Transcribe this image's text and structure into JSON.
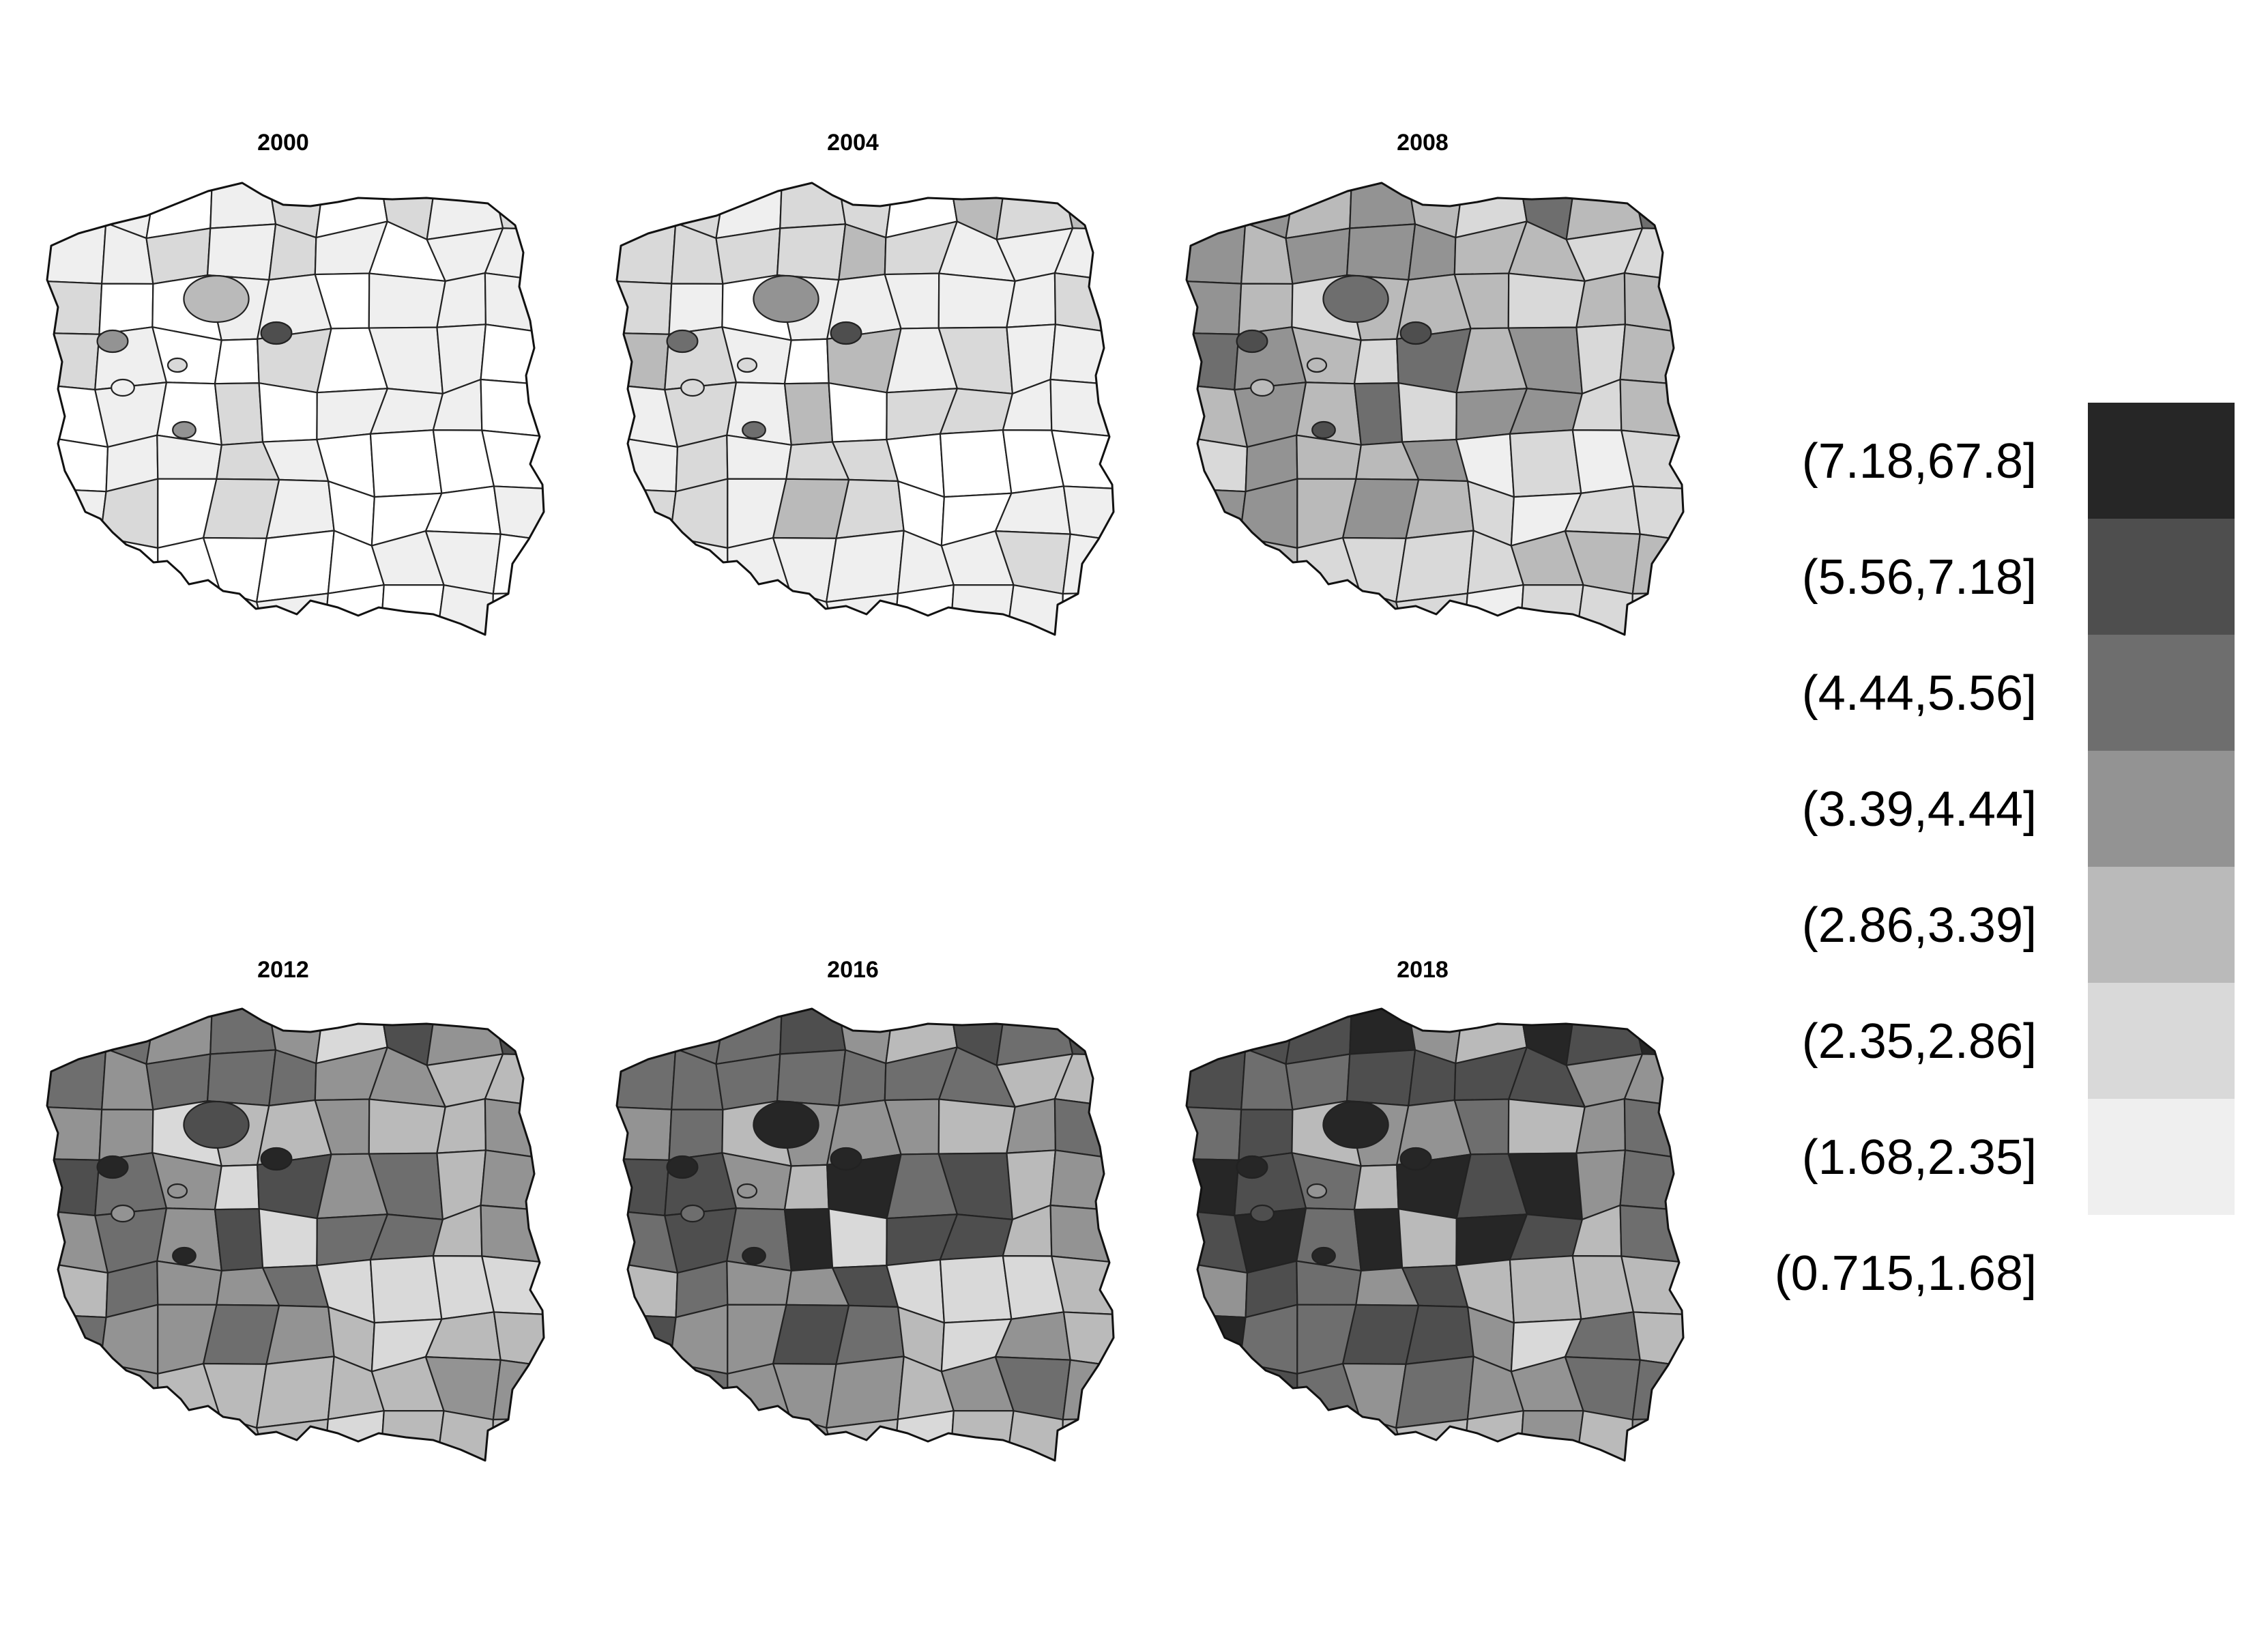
{
  "legend": {
    "classes": [
      {
        "label": "(7.18,67.8]",
        "color": "#262626"
      },
      {
        "label": "(5.56,7.18]",
        "color": "#4e4e4e"
      },
      {
        "label": "(4.44,5.56]",
        "color": "#6e6e6e"
      },
      {
        "label": "(3.39,4.44]",
        "color": "#939393"
      },
      {
        "label": "(2.86,3.39]",
        "color": "#bababa"
      },
      {
        "label": "(2.35,2.86]",
        "color": "#d9d9d9"
      },
      {
        "label": "(1.68,2.35]",
        "color": "#efefef"
      },
      {
        "label": "(0.715,1.68]",
        "color": "#ffffff"
      }
    ]
  },
  "panels": [
    {
      "year": "2000",
      "level": 0
    },
    {
      "year": "2004",
      "level": 0.5
    },
    {
      "year": "2008",
      "level": 2
    },
    {
      "year": "2012",
      "level": 2.8
    },
    {
      "year": "2016",
      "level": 3.2
    },
    {
      "year": "2018",
      "level": 3.8
    }
  ]
}
